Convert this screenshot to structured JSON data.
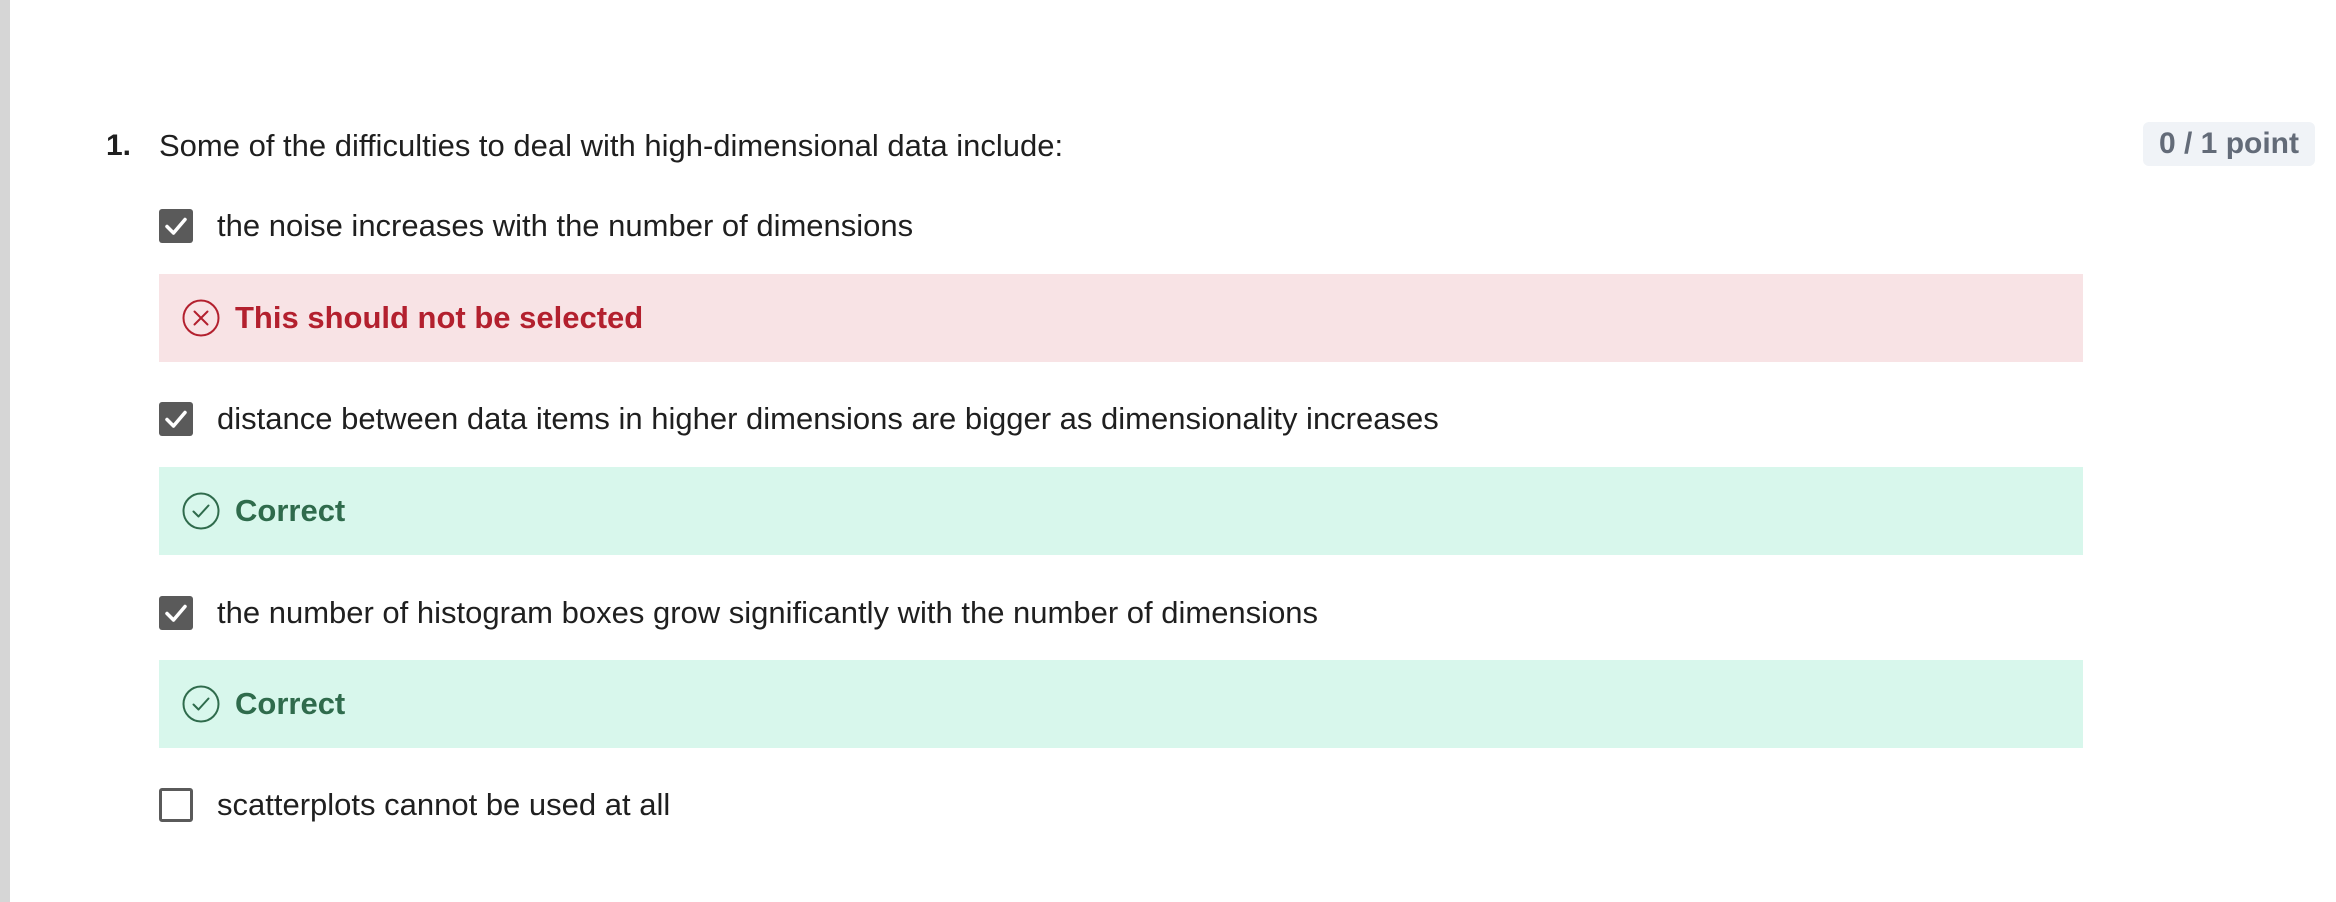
{
  "question": {
    "number": "1.",
    "text": "Some of the difficulties to deal with high-dimensional data include:",
    "points": "0 / 1 point",
    "options": [
      {
        "label": "the noise increases with the number of dimensions",
        "checked": true,
        "feedback": {
          "text": "This should not be selected",
          "status": "incorrect"
        }
      },
      {
        "label": "distance between data items in higher dimensions are bigger as dimensionality increases",
        "checked": true,
        "feedback": {
          "text": "Correct",
          "status": "correct"
        }
      },
      {
        "label": "the number of histogram boxes grow significantly with the number of dimensions",
        "checked": true,
        "feedback": {
          "text": "Correct",
          "status": "correct"
        }
      },
      {
        "label": "scatterplots cannot be used at all",
        "checked": false
      }
    ]
  },
  "icons": {
    "check": "checkmark-icon",
    "incorrect": "x-circle-icon",
    "correct": "check-circle-icon"
  },
  "colors": {
    "incorrect_bg": "#f8e3e5",
    "incorrect_fg": "#b3202e",
    "correct_bg": "#d8f7ec",
    "correct_fg": "#2f6b4c",
    "checkbox": "#5a5a5a"
  }
}
